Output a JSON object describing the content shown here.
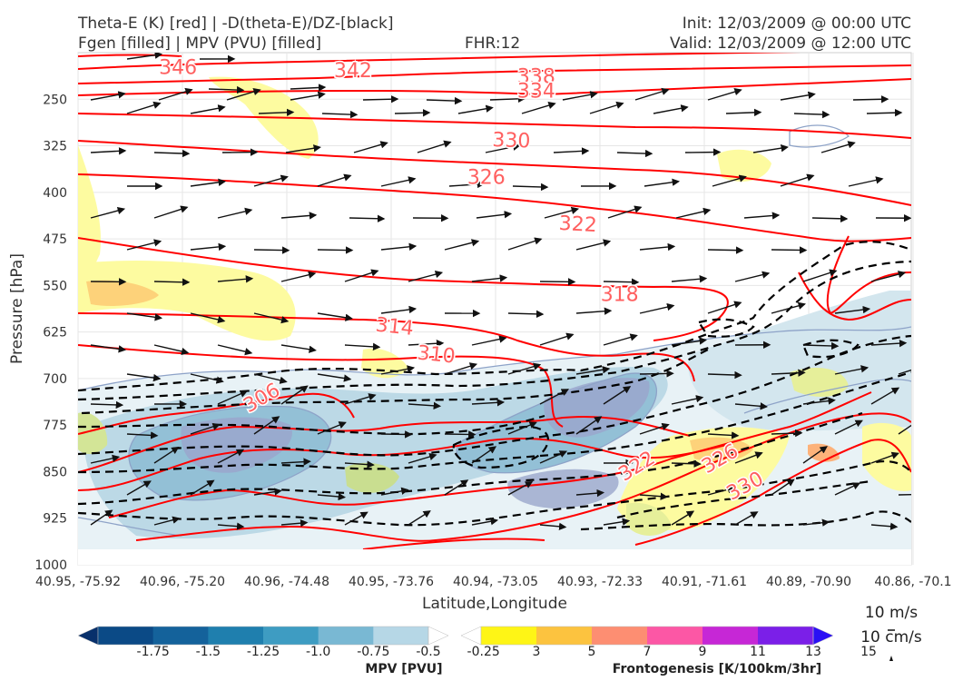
{
  "header": {
    "title_line1": "Theta-E (K) [red] | -D(theta-E)/DZ-[black]",
    "title_line2": "Fgen [filled] | MPV (PVU) [filled]",
    "fhr": "FHR:12",
    "init": "Init: 12/03/2009 @ 00:00 UTC",
    "valid": "Valid: 12/03/2009 @ 12:00 UTC"
  },
  "chart_data": {
    "type": "cross-section",
    "xlabel": "Latitude,Longitude",
    "ylabel": "Pressure [hPa]",
    "ylim": [
      1000,
      175
    ],
    "yticks": [
      "250",
      "325",
      "400",
      "475",
      "550",
      "625",
      "700",
      "775",
      "850",
      "925",
      "1000"
    ],
    "xticks": [
      "40.95, -75.92",
      "40.96, -75.20",
      "40.96, -74.48",
      "40.95, -73.76",
      "40.94, -73.05",
      "40.93, -72.33",
      "40.91, -71.61",
      "40.89, -70.90",
      "40.86, -70.1"
    ],
    "theta_e_contours": [
      {
        "value": "346",
        "label_x": 0.12,
        "label_p": 198
      },
      {
        "value": "342",
        "label_x": 0.33,
        "label_p": 203
      },
      {
        "value": "338",
        "label_x": 0.55,
        "label_p": 212
      },
      {
        "value": "334",
        "label_x": 0.55,
        "label_p": 236
      },
      {
        "value": "330",
        "label_x": 0.52,
        "label_p": 315
      },
      {
        "value": "326",
        "label_x": 0.49,
        "label_p": 375
      },
      {
        "value": "322",
        "label_x": 0.6,
        "label_p": 450
      },
      {
        "value": "318",
        "label_x": 0.65,
        "label_p": 563
      },
      {
        "value": "314",
        "label_x": 0.38,
        "label_p": 615
      },
      {
        "value": "310",
        "label_x": 0.43,
        "label_p": 660
      },
      {
        "value": "306",
        "label_x": 0.22,
        "label_p": 730
      },
      {
        "value": "322",
        "label_x": 0.67,
        "label_p": 840
      },
      {
        "value": "326",
        "label_x": 0.77,
        "label_p": 828
      },
      {
        "value": "330",
        "label_x": 0.8,
        "label_p": 872
      }
    ],
    "wind_reference": {
      "label1": "10 m/s",
      "label2": "10 cm/s"
    },
    "mpv_colorbar": {
      "label": "MPV [PVU]",
      "ticks": [
        "-1.75",
        "-1.5",
        "-1.25",
        "-1.0",
        "-0.75",
        "-0.5",
        "-0.25"
      ],
      "colors": [
        "#08306b",
        "#0b4a86",
        "#14629b",
        "#1f7fae",
        "#3e9cc2",
        "#79b8d3",
        "#b6d7e6",
        "#ffffff"
      ]
    },
    "fgen_colorbar": {
      "label": "Frontogenesis [K/100km/3hr]",
      "ticks": [
        "3",
        "5",
        "7",
        "9",
        "11",
        "13",
        "15"
      ],
      "colors": [
        "#ffffff",
        "#fef516",
        "#fcc33f",
        "#fd8e72",
        "#fc57a5",
        "#c627d6",
        "#7b1fe8",
        "#2a10f5"
      ]
    },
    "colors": {
      "theta_e": "#ff0000",
      "theta_e_label": "#ff6060",
      "stability": "#000000",
      "wind": "#111111"
    }
  }
}
